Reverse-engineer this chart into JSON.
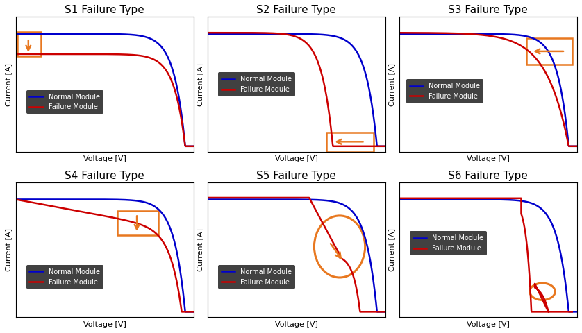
{
  "titles": [
    "S1 Failure Type",
    "S2 Failure Type",
    "S3 Failure Type",
    "S4 Failure Type",
    "S5 Failure Type",
    "S6 Failure Type"
  ],
  "xlabel": "Voltage [V]",
  "ylabel": "Current [A]",
  "blue_label": "Normal Module",
  "red_label": "Failure Module",
  "blue_color": "#0000cc",
  "red_color": "#cc0000",
  "orange_color": "#e87820",
  "bg_color": "#ffffff",
  "legend_bg": "#111111",
  "legend_text": "#ffffff",
  "title_fontsize": 11,
  "label_fontsize": 8,
  "legend_fontsize": 7,
  "lw": 1.8
}
